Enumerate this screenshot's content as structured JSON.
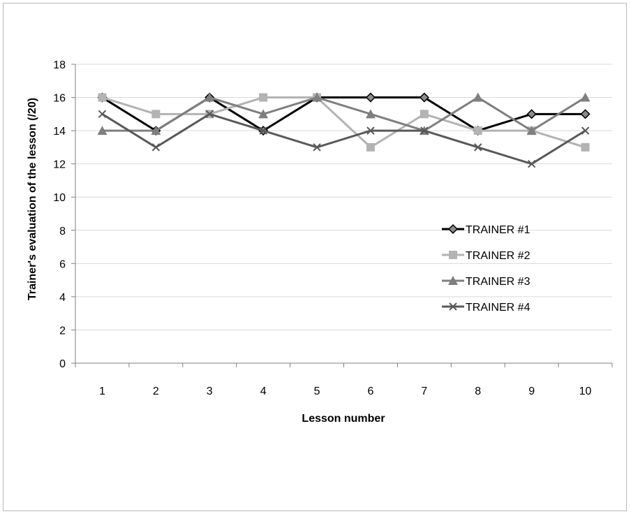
{
  "chart_data": {
    "type": "line",
    "title": "",
    "xlabel": "Lesson number",
    "ylabel": "Trainer's evaluation of the lesson (/20)",
    "categories": [
      "1",
      "2",
      "3",
      "4",
      "5",
      "6",
      "7",
      "8",
      "9",
      "10"
    ],
    "ylim": [
      0,
      18
    ],
    "yticks": [
      "0",
      "2",
      "4",
      "6",
      "8",
      "10",
      "12",
      "14",
      "16",
      "18"
    ],
    "grid": "horizontal",
    "legend_position": "right",
    "series": [
      {
        "name": "TRAINER #1",
        "marker": "diamond",
        "color": "#000000",
        "values": [
          16,
          14,
          16,
          14,
          16,
          16,
          16,
          14,
          15,
          15
        ]
      },
      {
        "name": "TRAINER #2",
        "marker": "square",
        "color": "#b3b3b3",
        "values": [
          16,
          15,
          15,
          16,
          16,
          13,
          15,
          14,
          14,
          13
        ]
      },
      {
        "name": "TRAINER #3",
        "marker": "triangle",
        "color": "#7f7f7f",
        "values": [
          14,
          14,
          16,
          15,
          16,
          15,
          14,
          16,
          14,
          16
        ]
      },
      {
        "name": "TRAINER #4",
        "marker": "x",
        "color": "#595959",
        "values": [
          15,
          13,
          15,
          14,
          13,
          14,
          14,
          13,
          12,
          14
        ]
      }
    ]
  }
}
